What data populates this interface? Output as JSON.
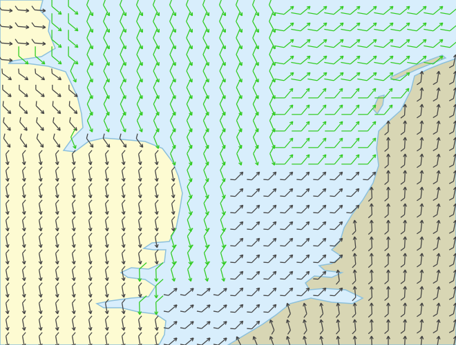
{
  "map": {
    "colors": {
      "sea": "#d8eefc",
      "uk_land": "#fdfbd2",
      "continent_land": "#d8d6b4",
      "coastline": "#8cc0dc",
      "barb_strong": "#33cc22",
      "barb_normal": "#444444"
    },
    "layers": [
      "sea",
      "land",
      "coastline",
      "wind-barbs"
    ]
  }
}
